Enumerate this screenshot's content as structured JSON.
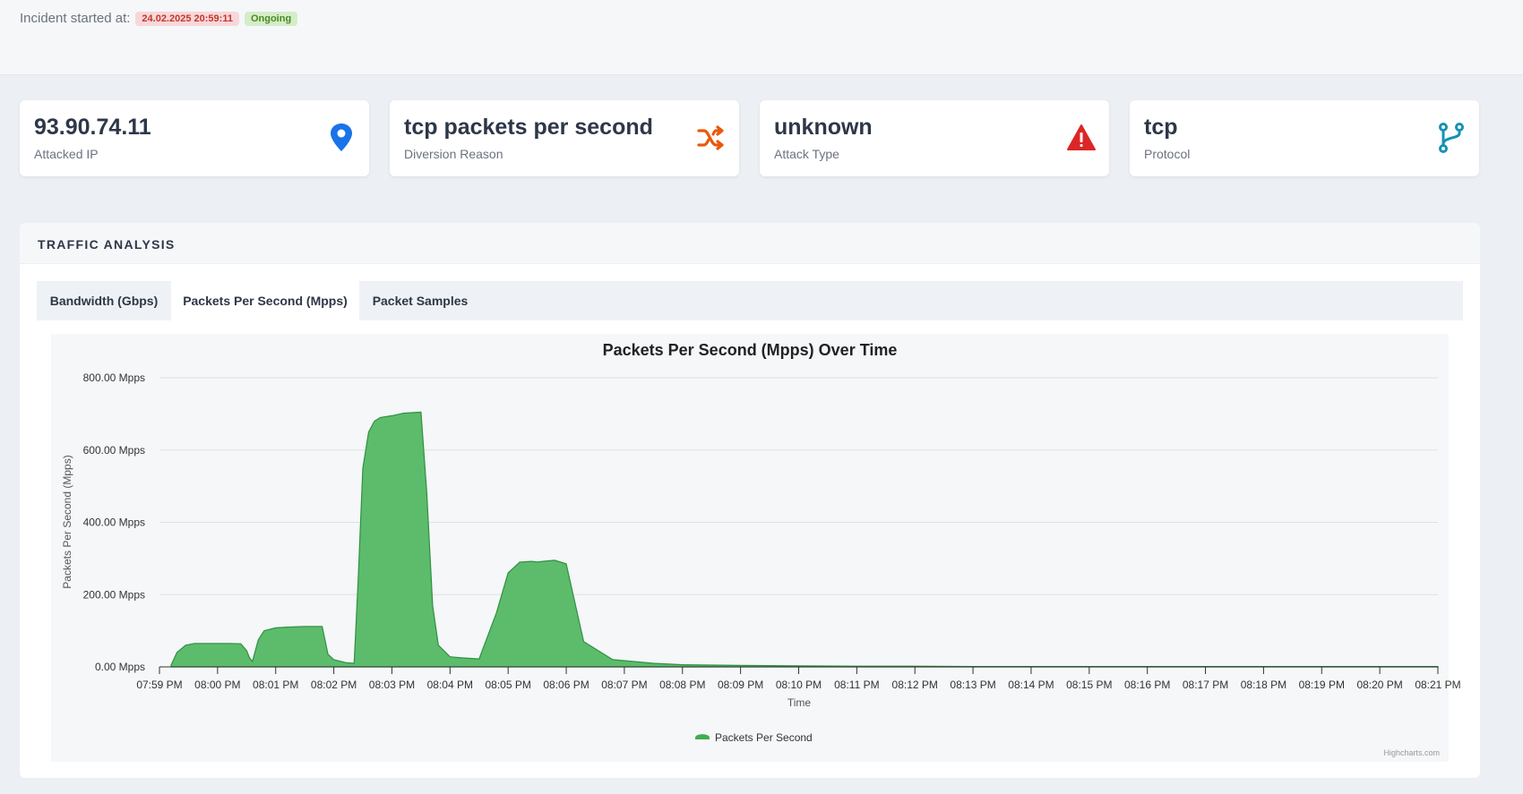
{
  "incident": {
    "label": "Incident started at:",
    "date": "24.02.2025 20:59:11",
    "status": "Ongoing"
  },
  "cards": [
    {
      "value": "93.90.74.11",
      "label": "Attacked IP",
      "icon": "map-pin-icon",
      "color": "#1a73e8"
    },
    {
      "value": "tcp packets per second",
      "label": "Diversion Reason",
      "icon": "shuffle-icon",
      "color": "#e8590c"
    },
    {
      "value": "unknown",
      "label": "Attack Type",
      "icon": "warning-triangle-icon",
      "color": "#dc2626"
    },
    {
      "value": "tcp",
      "label": "Protocol",
      "icon": "git-branch-icon",
      "color": "#1592b3"
    }
  ],
  "panel": {
    "title": "TRAFFIC ANALYSIS"
  },
  "tabs": [
    {
      "label": "Bandwidth (Gbps)",
      "active": false
    },
    {
      "label": "Packets Per Second (Mpps)",
      "active": true
    },
    {
      "label": "Packet Samples",
      "active": false
    }
  ],
  "credit": "Highcharts.com",
  "chart_data": {
    "type": "area",
    "title": "Packets Per Second (Mpps) Over Time",
    "xlabel": "Time",
    "ylabel": "Packets Per Second (Mpps)",
    "ylim": [
      0,
      800
    ],
    "yticks": [
      "0.00 Mpps",
      "200.00 Mpps",
      "400.00 Mpps",
      "600.00 Mpps",
      "800.00 Mpps"
    ],
    "categories": [
      "07:59 PM",
      "08:00 PM",
      "08:01 PM",
      "08:02 PM",
      "08:03 PM",
      "08:04 PM",
      "08:05 PM",
      "08:06 PM",
      "08:07 PM",
      "08:08 PM",
      "08:09 PM",
      "08:10 PM",
      "08:11 PM",
      "08:12 PM",
      "08:13 PM",
      "08:14 PM",
      "08:15 PM",
      "08:16 PM",
      "08:17 PM",
      "08:18 PM",
      "08:19 PM",
      "08:20 PM",
      "08:21 PM"
    ],
    "grid": true,
    "legend_position": "bottom-center",
    "color": "#3fae4f",
    "series": [
      {
        "name": "Packets Per Second",
        "x": [
          0.2,
          0.3,
          0.45,
          0.6,
          0.8,
          1.0,
          1.2,
          1.4,
          1.5,
          1.55,
          1.6,
          1.7,
          1.8,
          2.0,
          2.2,
          2.5,
          2.8,
          2.9,
          3.0,
          3.2,
          3.35,
          3.42,
          3.5,
          3.6,
          3.7,
          3.8,
          4.0,
          4.2,
          4.5,
          4.6,
          4.7,
          4.8,
          5.0,
          5.2,
          5.5,
          5.8,
          6.0,
          6.2,
          6.4,
          6.5,
          6.6,
          6.8,
          7.0,
          7.3,
          7.8,
          8.5,
          9.0,
          10.0,
          11.0,
          12.0,
          13.0,
          14.0,
          15.0,
          16.0,
          17.0,
          18.0,
          19.0,
          20.0,
          21.0,
          22.0
        ],
        "values": [
          5,
          40,
          60,
          65,
          65,
          65,
          65,
          64,
          45,
          25,
          15,
          75,
          100,
          108,
          110,
          112,
          112,
          35,
          20,
          12,
          10,
          240,
          550,
          650,
          680,
          690,
          695,
          702,
          705,
          480,
          170,
          60,
          28,
          25,
          22,
          150,
          260,
          290,
          292,
          290,
          292,
          295,
          285,
          70,
          20,
          10,
          6,
          4,
          3,
          2,
          2,
          1,
          1,
          1,
          1,
          1,
          1,
          1,
          1,
          1
        ]
      }
    ]
  }
}
